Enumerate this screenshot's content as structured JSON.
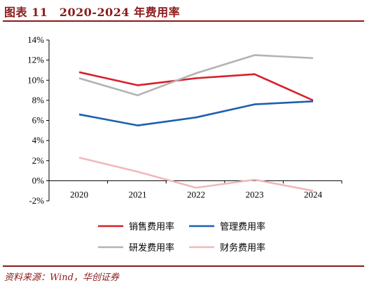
{
  "header": {
    "title": "图表 11　2020-2024 年费用率"
  },
  "footer": {
    "source": "资料来源：Wind，华创证券"
  },
  "chart_data": {
    "type": "line",
    "title": "2020-2024 年费用率",
    "x": [
      "2020",
      "2021",
      "2022",
      "2023",
      "2024"
    ],
    "ylim": [
      -2,
      14
    ],
    "yticks": [
      -2,
      0,
      2,
      4,
      6,
      8,
      10,
      12,
      14
    ],
    "y_unit": "%",
    "grid": false,
    "legend_position": "bottom",
    "series": [
      {
        "name": "销售费用率",
        "color": "#d7202a",
        "values": [
          10.8,
          9.5,
          10.2,
          10.6,
          8.0
        ]
      },
      {
        "name": "管理费用率",
        "color": "#1f5fb0",
        "values": [
          6.6,
          5.5,
          6.3,
          7.6,
          7.9
        ]
      },
      {
        "name": "研发费用率",
        "color": "#b3b3b3",
        "values": [
          10.2,
          8.5,
          10.7,
          12.5,
          12.2
        ]
      },
      {
        "name": "财务费用率",
        "color": "#f0b9bd",
        "values": [
          2.3,
          0.9,
          -0.7,
          0.1,
          -1.0
        ]
      }
    ]
  }
}
